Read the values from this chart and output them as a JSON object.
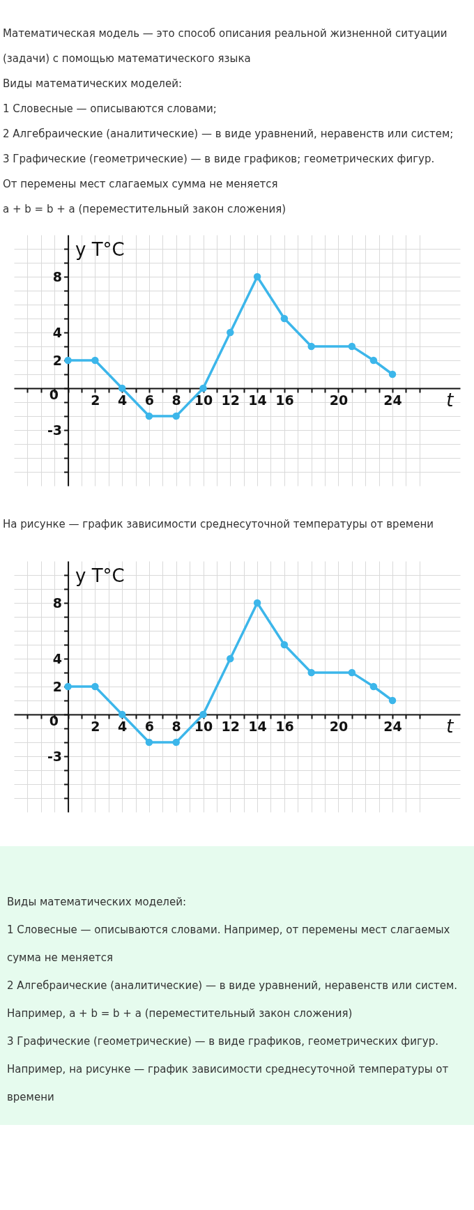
{
  "chart_data": [
    {
      "type": "other",
      "annotations": [
        "Математическая модель — это способ описания реальной жизненной ситуации (задачи) с помощью математического языка",
        "Виды математических моделей:",
        "1  Словесные — описываются словами;",
        "2  Алгебраические (аналитические) — в виде уравнений, неравенств или систем;",
        "3  Графические (геометрические) — в виде графиков; геометрических фигур.",
        "От перемены мест слагаемых сумма не меняется",
        "a + b = b + a (переместительный закон сложения)"
      ]
    },
    {
      "type": "line",
      "ylabel": "y T°C",
      "xlabel": "t",
      "grid": true,
      "marker": "circle",
      "x": [
        0,
        2,
        4,
        6,
        8,
        10,
        12,
        14,
        16,
        18,
        21,
        22.6,
        24
      ],
      "series": [
        {
          "color": "#3cb6ea",
          "values": [
            2,
            2,
            0,
            -2,
            -2,
            0,
            4,
            8,
            5,
            3,
            3,
            2,
            1
          ]
        }
      ],
      "xlim": [
        -4,
        29
      ],
      "ylim": [
        -7,
        11
      ],
      "xticks": [
        {
          "value": -3,
          "label": null
        },
        {
          "value": -2,
          "label": null
        },
        {
          "value": -1,
          "label": null
        },
        {
          "value": 0,
          "label": null
        },
        {
          "value": 1,
          "label": null
        },
        2,
        {
          "value": 3,
          "label": null
        },
        4,
        {
          "value": 5,
          "label": null
        },
        6,
        {
          "value": 7,
          "label": null
        },
        8,
        {
          "value": 9,
          "label": null
        },
        10,
        {
          "value": 11,
          "label": null
        },
        12,
        {
          "value": 13,
          "label": null
        },
        14,
        {
          "value": 15,
          "label": null
        },
        16,
        {
          "value": 17,
          "label": null
        },
        {
          "value": 18,
          "label": null
        },
        {
          "value": 19,
          "label": null
        },
        20,
        {
          "value": 21,
          "label": null
        },
        {
          "value": 22,
          "label": null
        },
        {
          "value": 23,
          "label": null
        },
        24,
        {
          "value": 25,
          "label": null
        },
        {
          "value": 26,
          "label": null
        }
      ],
      "yticks": [
        {
          "value": -6,
          "label": null
        },
        {
          "value": -5,
          "label": null
        },
        {
          "value": -4,
          "label": null
        },
        -3,
        {
          "value": -2,
          "label": null
        },
        {
          "value": -1,
          "label": null
        },
        0,
        {
          "value": 1,
          "label": null
        },
        2,
        {
          "value": 3,
          "label": null
        },
        4,
        {
          "value": 5,
          "label": null
        },
        {
          "value": 6,
          "label": null
        },
        {
          "value": 7,
          "label": null
        },
        8,
        {
          "value": 9,
          "label": null
        },
        {
          "value": 10,
          "label": null
        }
      ],
      "annotations": [
        "На рисунке — график зависимости среднесуточной температуры от времени"
      ]
    },
    {
      "type": "line",
      "ylabel": "y T°C",
      "xlabel": "t",
      "grid": true,
      "marker": "circle",
      "x": [
        0,
        2,
        4,
        6,
        8,
        10,
        12,
        14,
        16,
        18,
        21,
        22.6,
        24
      ],
      "series": [
        {
          "color": "#3cb6ea",
          "values": [
            2,
            2,
            0,
            -2,
            -2,
            0,
            4,
            8,
            5,
            3,
            3,
            2,
            1
          ]
        }
      ],
      "xlim": [
        -4,
        29
      ],
      "ylim": [
        -7,
        11
      ],
      "xticks": [
        {
          "value": -3,
          "label": null
        },
        {
          "value": -2,
          "label": null
        },
        {
          "value": -1,
          "label": null
        },
        {
          "value": 0,
          "label": null
        },
        {
          "value": 1,
          "label": null
        },
        2,
        {
          "value": 3,
          "label": null
        },
        4,
        {
          "value": 5,
          "label": null
        },
        6,
        {
          "value": 7,
          "label": null
        },
        8,
        {
          "value": 9,
          "label": null
        },
        10,
        {
          "value": 11,
          "label": null
        },
        12,
        {
          "value": 13,
          "label": null
        },
        14,
        {
          "value": 15,
          "label": null
        },
        16,
        {
          "value": 17,
          "label": null
        },
        {
          "value": 18,
          "label": null
        },
        {
          "value": 19,
          "label": null
        },
        20,
        {
          "value": 21,
          "label": null
        },
        {
          "value": 22,
          "label": null
        },
        {
          "value": 23,
          "label": null
        },
        24,
        {
          "value": 25,
          "label": null
        },
        {
          "value": 26,
          "label": null
        }
      ],
      "yticks": [
        {
          "value": -6,
          "label": null
        },
        {
          "value": -5,
          "label": null
        },
        {
          "value": -4,
          "label": null
        },
        -3,
        {
          "value": -2,
          "label": null
        },
        {
          "value": -1,
          "label": null
        },
        0,
        {
          "value": 1,
          "label": null
        },
        2,
        {
          "value": 3,
          "label": null
        },
        4,
        {
          "value": 5,
          "label": null
        },
        {
          "value": 6,
          "label": null
        },
        {
          "value": 7,
          "label": null
        },
        8,
        {
          "value": 9,
          "label": null
        },
        {
          "value": 10,
          "label": null
        }
      ]
    },
    {
      "type": "other",
      "annotations": [
        "Виды математических моделей:",
        "1  Словесные — описываются словами. Например, от перемены мест слагаемых сумма не меняется",
        "2  Алгебраические (аналитические) — в виде уравнений, неравенств или систем. Например, a + b = b + a (переместительный закон сложения)",
        "3  Графические (геометрические) — в виде графиков, геометрических фигур. Например, на рисунке — график зависимости среднесуточной температуры от времени"
      ]
    }
  ]
}
